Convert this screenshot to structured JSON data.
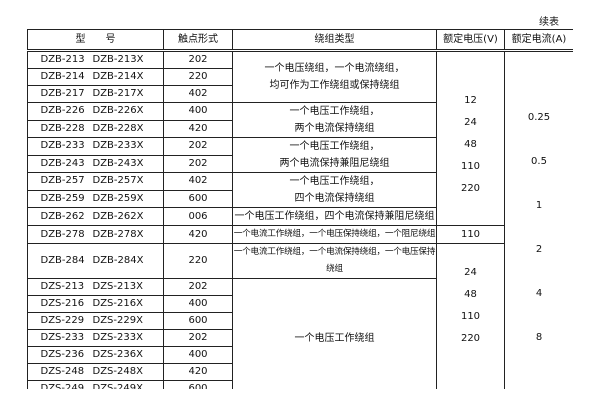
{
  "caption": "续表",
  "headers": {
    "model": "型　　号",
    "contact": "触点形式",
    "winding": "绕组类型",
    "voltage": "额定电压(V)",
    "current": "额定电流(A)"
  },
  "rows": [
    {
      "m1": "DZB-213",
      "m2": "DZB-213X",
      "contact": "202"
    },
    {
      "m1": "DZB-214",
      "m2": "DZB-214X",
      "contact": "220"
    },
    {
      "m1": "DZB-217",
      "m2": "DZB-217X",
      "contact": "402"
    },
    {
      "m1": "DZB-226",
      "m2": "DZB-226X",
      "contact": "400"
    },
    {
      "m1": "DZB-228",
      "m2": "DZB-228X",
      "contact": "420"
    },
    {
      "m1": "DZB-233",
      "m2": "DZB-233X",
      "contact": "202"
    },
    {
      "m1": "DZB-243",
      "m2": "DZB-243X",
      "contact": "202"
    },
    {
      "m1": "DZB-257",
      "m2": "DZB-257X",
      "contact": "402"
    },
    {
      "m1": "DZB-259",
      "m2": "DZB-259X",
      "contact": "600"
    },
    {
      "m1": "DZB-262",
      "m2": "DZB-262X",
      "contact": "006"
    },
    {
      "m1": "DZB-278",
      "m2": "DZB-278X",
      "contact": "420"
    },
    {
      "m1": "DZB-284",
      "m2": "DZB-284X",
      "contact": "220"
    },
    {
      "m1": "DZS-213",
      "m2": "DZS-213X",
      "contact": "202"
    },
    {
      "m1": "DZS-216",
      "m2": "DZS-216X",
      "contact": "400"
    },
    {
      "m1": "DZS-229",
      "m2": "DZS-229X",
      "contact": "600"
    },
    {
      "m1": "DZS-233",
      "m2": "DZS-233X",
      "contact": "202"
    },
    {
      "m1": "DZS-236",
      "m2": "DZS-236X",
      "contact": "400"
    },
    {
      "m1": "DZS-248",
      "m2": "DZS-248X",
      "contact": "420"
    },
    {
      "m1": "DZS-249",
      "m2": "DZS-249X",
      "contact": "600"
    },
    {
      "m1": "DZS-254",
      "m2": "DZS-254X",
      "contact": "220"
    }
  ],
  "windings": [
    [
      "一个电压绕组，一个电流绕组，",
      "均可作为工作绕组或保持绕组"
    ],
    [
      "一个电压工作绕组，",
      "两个电流保持绕组"
    ],
    [
      "一个电压工作绕组，",
      "两个电流保持兼阻尼绕组"
    ],
    [
      "一个电压工作绕组，",
      "四个电流保持绕组"
    ],
    [
      "一个电压工作绕组，四个电流保持兼阻尼绕组"
    ],
    [
      "一个电流工作绕组，一个电压保持绕组，一个阻尼绕组"
    ],
    [
      "一个电流工作绕组，一个电流保持绕组，一个电压保持绕组"
    ],
    [
      "一个电压工作绕组"
    ],
    [
      "一个电压工作绕组，一个阻尼绕组"
    ]
  ],
  "voltages": [
    [
      "12",
      "24",
      "48",
      "110",
      "220"
    ],
    [
      "110"
    ],
    [
      "24",
      "48",
      "110",
      "220"
    ]
  ],
  "currents": [
    "0.25",
    "0.5",
    "1",
    "2",
    "4",
    "8"
  ]
}
